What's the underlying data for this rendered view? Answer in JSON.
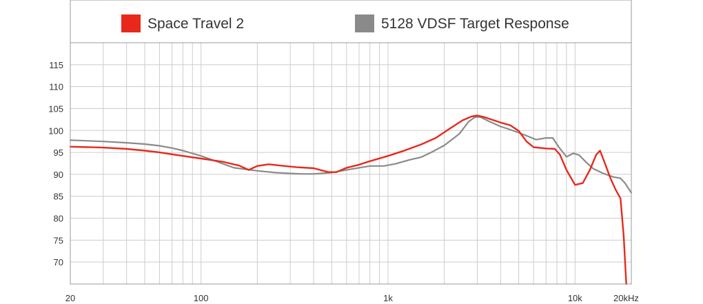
{
  "chart_data": {
    "type": "line",
    "title": "",
    "xlabel": "",
    "ylabel": "",
    "x_scale": "log",
    "xlim": [
      20,
      20000
    ],
    "ylim": [
      65,
      120
    ],
    "grid": true,
    "legend_position": "top",
    "x_ticks": [
      {
        "value": 20,
        "label": "20"
      },
      {
        "value": 100,
        "label": "100"
      },
      {
        "value": 1000,
        "label": "1k"
      },
      {
        "value": 10000,
        "label": "10k"
      },
      {
        "value": 20000,
        "label": "20kHz"
      }
    ],
    "y_ticks": [
      70,
      75,
      80,
      85,
      90,
      95,
      100,
      105,
      110,
      115
    ],
    "series": [
      {
        "name": "Space Travel 2",
        "color": "#e8281c",
        "points": [
          [
            20,
            96.3
          ],
          [
            30,
            96.1
          ],
          [
            40,
            95.8
          ],
          [
            50,
            95.4
          ],
          [
            60,
            95.0
          ],
          [
            80,
            94.2
          ],
          [
            100,
            93.6
          ],
          [
            130,
            92.9
          ],
          [
            160,
            92.0
          ],
          [
            180,
            91.0
          ],
          [
            200,
            91.9
          ],
          [
            230,
            92.3
          ],
          [
            280,
            91.9
          ],
          [
            330,
            91.6
          ],
          [
            400,
            91.4
          ],
          [
            480,
            90.5
          ],
          [
            530,
            90.5
          ],
          [
            600,
            91.5
          ],
          [
            700,
            92.2
          ],
          [
            800,
            93.0
          ],
          [
            1000,
            94.2
          ],
          [
            1200,
            95.3
          ],
          [
            1500,
            96.8
          ],
          [
            1800,
            98.3
          ],
          [
            2100,
            100.2
          ],
          [
            2500,
            102.3
          ],
          [
            2800,
            103.2
          ],
          [
            3000,
            103.4
          ],
          [
            3300,
            103.0
          ],
          [
            4000,
            101.8
          ],
          [
            4500,
            101.2
          ],
          [
            5000,
            99.9
          ],
          [
            5500,
            97.5
          ],
          [
            6000,
            96.2
          ],
          [
            7000,
            95.9
          ],
          [
            7800,
            95.8
          ],
          [
            8300,
            94.5
          ],
          [
            9000,
            91.0
          ],
          [
            10000,
            87.6
          ],
          [
            11000,
            88.0
          ],
          [
            12000,
            91.0
          ],
          [
            13000,
            94.5
          ],
          [
            13600,
            95.4
          ],
          [
            14300,
            93.0
          ],
          [
            15500,
            89.0
          ],
          [
            16500,
            86.5
          ],
          [
            17500,
            84.5
          ],
          [
            18200,
            76.0
          ],
          [
            18800,
            65.0
          ]
        ]
      },
      {
        "name": "5128 VDSF Target Response",
        "color": "#8a8a8a",
        "points": [
          [
            20,
            97.8
          ],
          [
            30,
            97.5
          ],
          [
            40,
            97.2
          ],
          [
            50,
            96.9
          ],
          [
            60,
            96.5
          ],
          [
            70,
            96.0
          ],
          [
            80,
            95.4
          ],
          [
            100,
            94.2
          ],
          [
            120,
            93.0
          ],
          [
            150,
            91.5
          ],
          [
            200,
            90.8
          ],
          [
            250,
            90.4
          ],
          [
            300,
            90.2
          ],
          [
            350,
            90.1
          ],
          [
            400,
            90.1
          ],
          [
            500,
            90.4
          ],
          [
            600,
            91.0
          ],
          [
            700,
            91.5
          ],
          [
            800,
            91.9
          ],
          [
            950,
            91.9
          ],
          [
            1100,
            92.4
          ],
          [
            1300,
            93.3
          ],
          [
            1500,
            93.9
          ],
          [
            1700,
            95.0
          ],
          [
            2000,
            96.6
          ],
          [
            2400,
            99.2
          ],
          [
            2700,
            102.0
          ],
          [
            2900,
            103.0
          ],
          [
            3100,
            103.1
          ],
          [
            3500,
            102.0
          ],
          [
            4000,
            100.9
          ],
          [
            4500,
            100.2
          ],
          [
            5000,
            99.5
          ],
          [
            5500,
            98.8
          ],
          [
            6200,
            97.9
          ],
          [
            7000,
            98.3
          ],
          [
            7600,
            98.3
          ],
          [
            8200,
            96.2
          ],
          [
            9000,
            94.0
          ],
          [
            9800,
            94.8
          ],
          [
            10500,
            94.4
          ],
          [
            11500,
            92.7
          ],
          [
            12500,
            91.3
          ],
          [
            14000,
            90.3
          ],
          [
            16000,
            89.4
          ],
          [
            17500,
            89.1
          ],
          [
            18500,
            88.0
          ],
          [
            20000,
            85.8
          ]
        ]
      }
    ]
  }
}
